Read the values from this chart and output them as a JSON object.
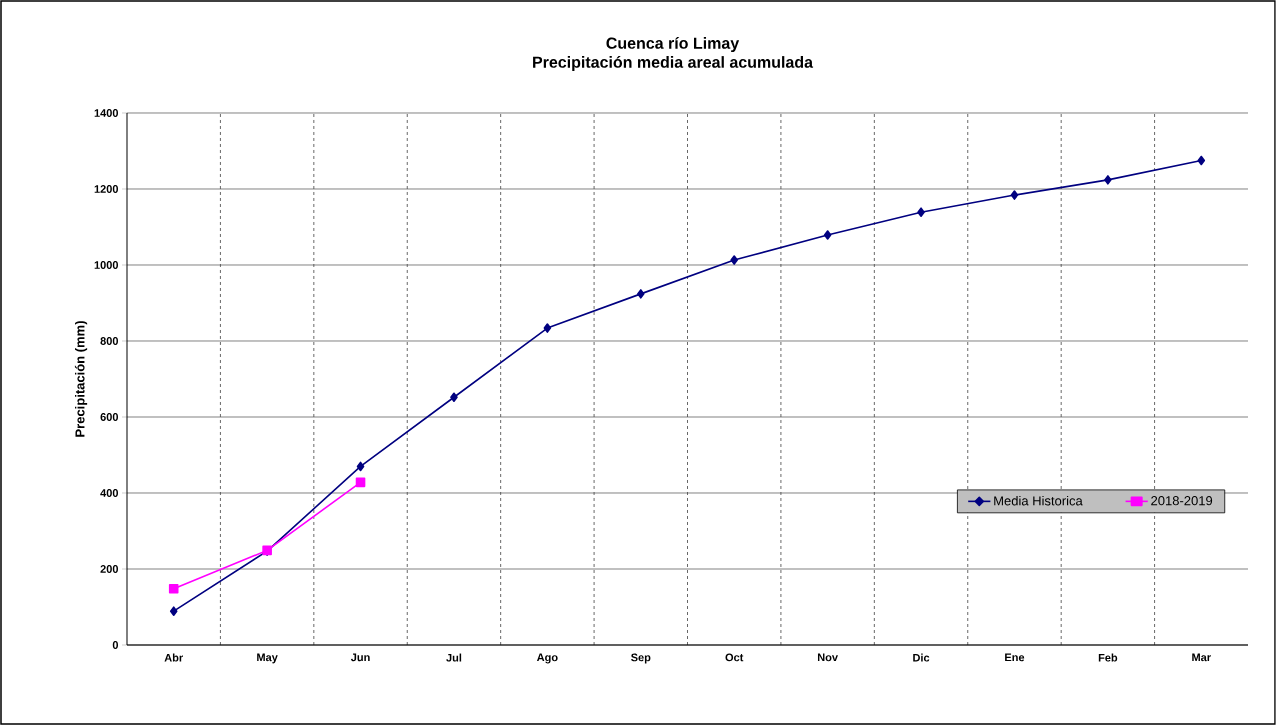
{
  "chart_data": {
    "type": "line",
    "title": "Cuenca río Limay",
    "subtitle": "Precipitación media areal acumulada",
    "ylabel": "Precipitación (mm)",
    "categories": [
      "Abr",
      "May",
      "Jun",
      "Jul",
      "Ago",
      "Sep",
      "Oct",
      "Nov",
      "Dic",
      "Ene",
      "Feb",
      "Mar"
    ],
    "series": [
      {
        "name": "Media Historica",
        "color": "#000080",
        "marker": "diamond",
        "values": [
          89,
          247,
          470,
          652,
          834,
          924,
          1013,
          1079,
          1139,
          1184,
          1224,
          1275
        ]
      },
      {
        "name": "2018-2019",
        "color": "#ff00ff",
        "marker": "square",
        "values": [
          148,
          249,
          428,
          null,
          null,
          null,
          null,
          null,
          null,
          null,
          null,
          null
        ]
      }
    ],
    "ylim": [
      0,
      1400
    ],
    "yticks": [
      0,
      200,
      400,
      600,
      800,
      1000,
      1200,
      1400
    ],
    "grid": true,
    "legend": "bottom right",
    "line_style": "solid"
  }
}
